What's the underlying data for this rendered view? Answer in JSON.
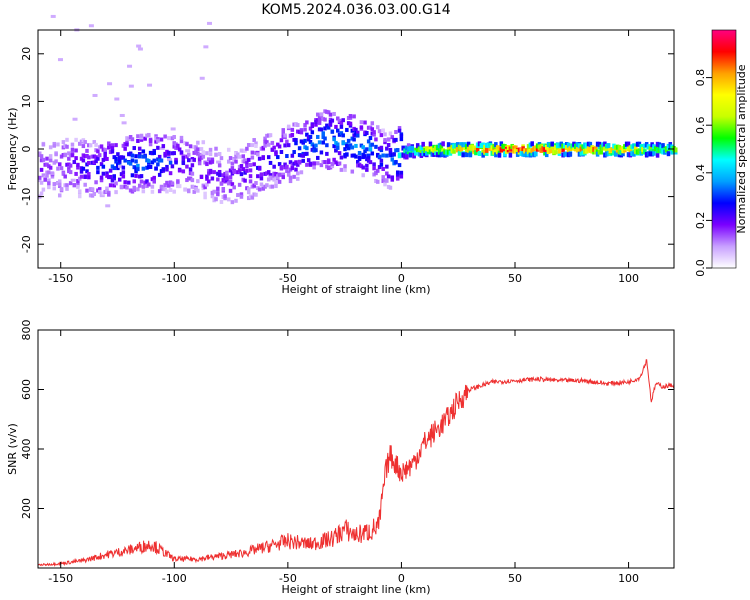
{
  "title": "KOM5.2024.036.03.00.G14",
  "chart_data": [
    {
      "type": "heatmap",
      "xlabel": "Height of straight line (km)",
      "ylabel": "Frequency (Hz)",
      "xlim": [
        -160,
        120
      ],
      "ylim": [
        -25,
        25
      ],
      "x_ticks": [
        -150,
        -100,
        -50,
        0,
        50,
        100
      ],
      "y_ticks": [
        -20,
        -10,
        0,
        10,
        20
      ],
      "colorbar": {
        "label": "Normalized spectral amplitude",
        "ticks": [
          0.0,
          0.2,
          0.4,
          0.6,
          0.8
        ],
        "range": [
          0,
          1
        ],
        "colormap": [
          "#ffffff",
          "#c8a0ff",
          "#7a00ff",
          "#0000ff",
          "#00a0ff",
          "#00ffff",
          "#00ff00",
          "#c8ff00",
          "#ffff00",
          "#ffa000",
          "#ff0000",
          "#ff0080"
        ]
      },
      "ridge": {
        "x": [
          -155,
          -145,
          -135,
          -125,
          -115,
          -105,
          -95,
          -85,
          -75,
          -65,
          -55,
          -45,
          -35,
          -25,
          -15,
          -10,
          -5,
          0,
          10,
          20,
          40,
          60,
          80,
          100,
          115
        ],
        "y": [
          -4,
          -4,
          -4,
          -3.5,
          -3,
          -3,
          -3,
          -5,
          -6,
          -4,
          -2,
          0,
          2,
          1.5,
          0,
          -1.5,
          -2.5,
          -0.5,
          0,
          0,
          0,
          0,
          0,
          0,
          0
        ],
        "amplitude": [
          0.15,
          0.2,
          0.25,
          0.3,
          0.35,
          0.3,
          0.2,
          0.18,
          0.18,
          0.22,
          0.25,
          0.3,
          0.35,
          0.35,
          0.35,
          0.3,
          0.3,
          0.5,
          0.7,
          0.8,
          0.95,
          0.95,
          0.85,
          0.8,
          0.6
        ]
      }
    },
    {
      "type": "line",
      "xlabel": "Height of straight line (km)",
      "ylabel": "SNR (v/v)",
      "xlim": [
        -160,
        120
      ],
      "ylim": [
        0,
        800
      ],
      "x_ticks": [
        -150,
        -100,
        -50,
        0,
        50,
        100
      ],
      "y_ticks": [
        200,
        400,
        600,
        800
      ],
      "color": "#ee3030",
      "series": [
        {
          "x": [
            -160,
            -150,
            -140,
            -130,
            -120,
            -110,
            -100,
            -90,
            -80,
            -70,
            -60,
            -50,
            -40,
            -30,
            -25,
            -20,
            -15,
            -10,
            -7,
            -5,
            0,
            5,
            10,
            15,
            20,
            25,
            30,
            40,
            50,
            60,
            70,
            80,
            90,
            100,
            105,
            108,
            110,
            112,
            115,
            120
          ],
          "values": [
            10,
            15,
            25,
            45,
            60,
            80,
            30,
            30,
            40,
            50,
            70,
            90,
            80,
            100,
            130,
            110,
            120,
            140,
            320,
            380,
            320,
            350,
            420,
            460,
            500,
            560,
            600,
            625,
            630,
            635,
            630,
            630,
            620,
            625,
            640,
            700,
            560,
            620,
            610,
            615
          ]
        }
      ]
    }
  ]
}
